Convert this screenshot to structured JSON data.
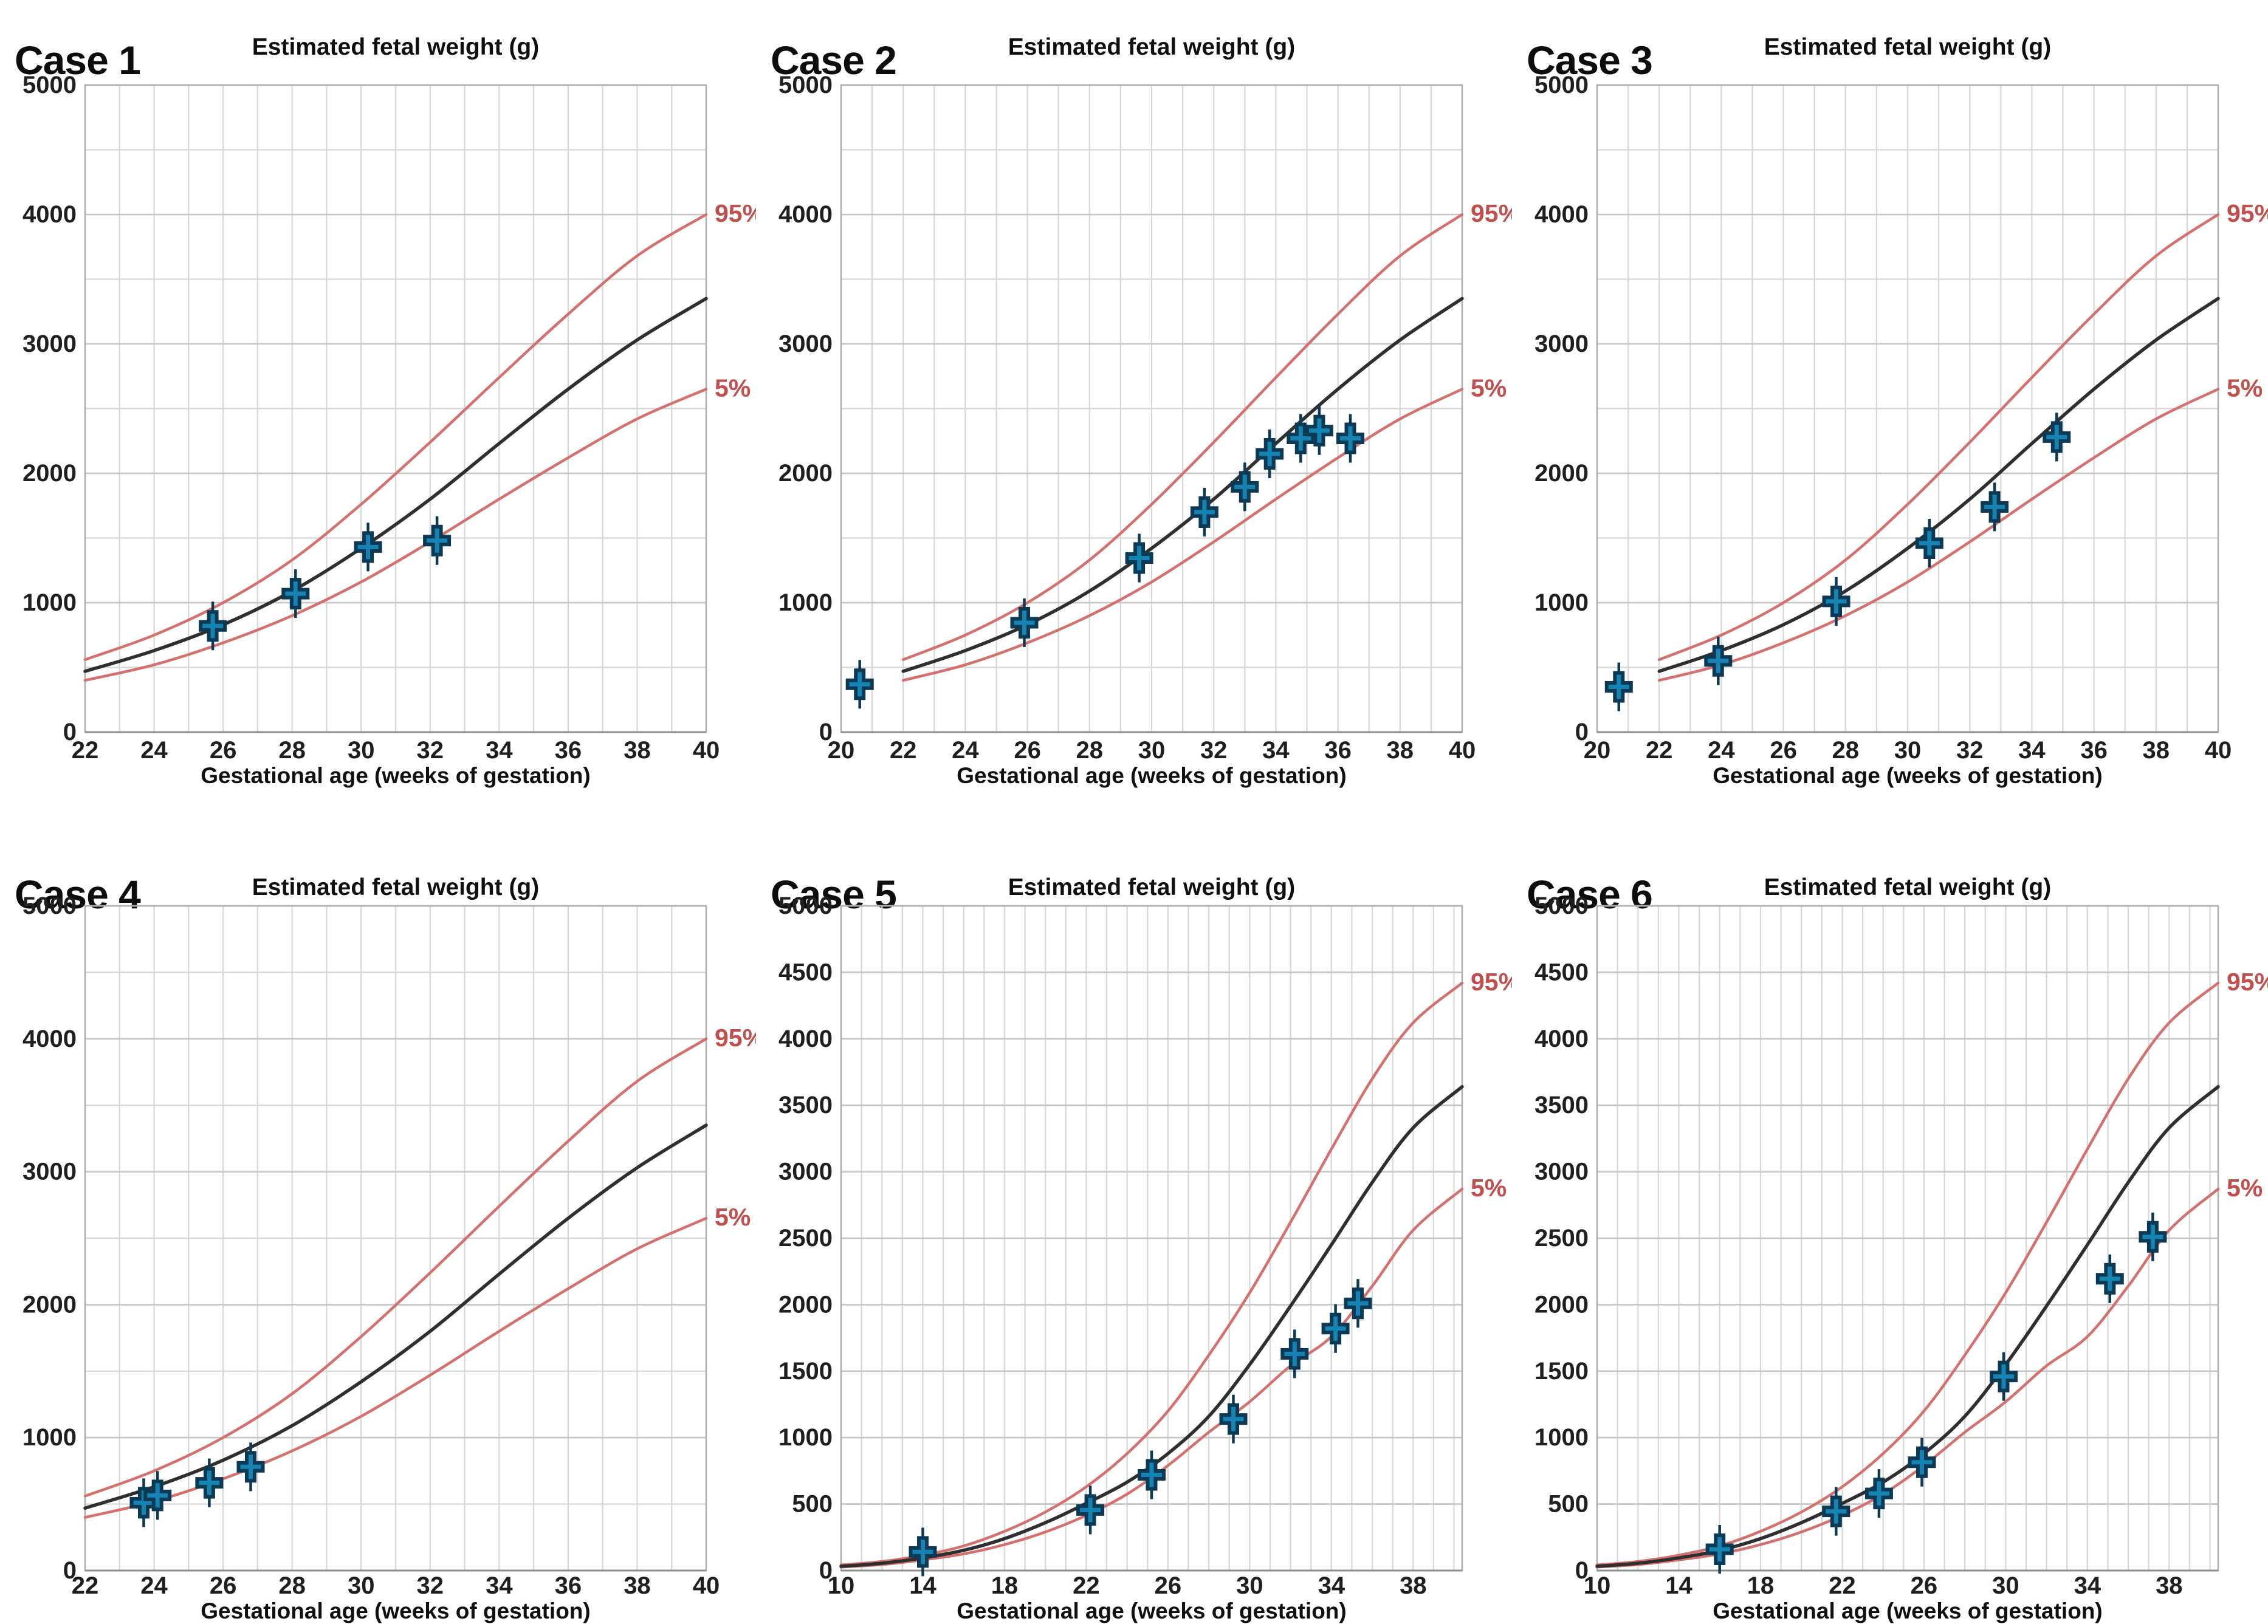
{
  "style": {
    "background": "#ffffff",
    "median_color": "#2f2f2f",
    "percentile_color": "#d4716e",
    "percent_label_color": "#c0504d",
    "marker_fill": "#1584b2",
    "marker_stroke": "#0c3a55",
    "grid_color": "#d7d7d7",
    "grid_major_color": "#c6c6c6",
    "axis_border_color": "#b0b0b0",
    "axis_line_color": "#8f8f8f",
    "tick_color": "#1f1f1f"
  },
  "chart_data": [
    {
      "type": "line+scatter",
      "case_label": "Case 1",
      "title": "Estimated fetal weight (g)",
      "xlabel": "Gestational age (weeks of gestation)",
      "x_axis": {
        "min": 22,
        "max": 40,
        "ticks": [
          22,
          24,
          26,
          28,
          30,
          32,
          34,
          36,
          38,
          40
        ]
      },
      "y_axis": {
        "min": 0,
        "max": 5000,
        "label_step": 1000,
        "grid_step": 500
      },
      "percentile_labels": {
        "p95": "95%",
        "p5": "5%"
      },
      "legend_position": "right-of-curve-ends",
      "series": {
        "x": [
          22,
          24,
          26,
          28,
          30,
          32,
          34,
          36,
          38,
          40
        ],
        "p50": [
          470,
          630,
          830,
          1090,
          1420,
          1800,
          2230,
          2650,
          3030,
          3350
        ],
        "p95": [
          560,
          750,
          1000,
          1330,
          1760,
          2240,
          2740,
          3230,
          3680,
          4000
        ],
        "p5": [
          400,
          520,
          690,
          900,
          1160,
          1470,
          1800,
          2120,
          2420,
          2650
        ]
      },
      "points": [
        [
          25.7,
          820
        ],
        [
          28.1,
          1070
        ],
        [
          30.2,
          1430
        ],
        [
          32.2,
          1480
        ]
      ]
    },
    {
      "type": "line+scatter",
      "case_label": "Case 2",
      "title": "Estimated fetal weight (g)",
      "xlabel": "Gestational age (weeks of gestation)",
      "x_axis": {
        "min": 20,
        "max": 40,
        "ticks": [
          20,
          22,
          24,
          26,
          28,
          30,
          32,
          34,
          36,
          38,
          40
        ]
      },
      "y_axis": {
        "min": 0,
        "max": 5000,
        "label_step": 1000,
        "grid_step": 500
      },
      "percentile_labels": {
        "p95": "95%",
        "p5": "5%"
      },
      "legend_position": "right-of-curve-ends",
      "series": {
        "x": [
          22,
          24,
          26,
          28,
          30,
          32,
          34,
          36,
          38,
          40
        ],
        "p50": [
          470,
          630,
          830,
          1090,
          1420,
          1800,
          2230,
          2650,
          3030,
          3350
        ],
        "p95": [
          560,
          750,
          1000,
          1330,
          1760,
          2240,
          2740,
          3230,
          3680,
          4000
        ],
        "p5": [
          400,
          520,
          690,
          900,
          1160,
          1470,
          1800,
          2120,
          2420,
          2650
        ]
      },
      "points": [
        [
          20.6,
          370
        ],
        [
          25.9,
          845
        ],
        [
          29.6,
          1345
        ],
        [
          31.7,
          1700
        ],
        [
          33.0,
          1895
        ],
        [
          33.8,
          2150
        ],
        [
          34.8,
          2270
        ],
        [
          35.4,
          2330
        ],
        [
          36.4,
          2270
        ]
      ]
    },
    {
      "type": "line+scatter",
      "case_label": "Case 3",
      "title": "Estimated fetal weight (g)",
      "xlabel": "Gestational age (weeks of gestation)",
      "x_axis": {
        "min": 20,
        "max": 40,
        "ticks": [
          20,
          22,
          24,
          26,
          28,
          30,
          32,
          34,
          36,
          38,
          40
        ]
      },
      "y_axis": {
        "min": 0,
        "max": 5000,
        "label_step": 1000,
        "grid_step": 500
      },
      "percentile_labels": {
        "p95": "95%",
        "p5": "5%"
      },
      "legend_position": "right-of-curve-ends",
      "series": {
        "x": [
          22,
          24,
          26,
          28,
          30,
          32,
          34,
          36,
          38,
          40
        ],
        "p50": [
          470,
          630,
          830,
          1090,
          1420,
          1800,
          2230,
          2650,
          3030,
          3350
        ],
        "p95": [
          560,
          750,
          1000,
          1330,
          1760,
          2240,
          2740,
          3230,
          3680,
          4000
        ],
        "p5": [
          400,
          520,
          690,
          900,
          1160,
          1470,
          1800,
          2120,
          2420,
          2650
        ]
      },
      "points": [
        [
          20.7,
          350
        ],
        [
          23.9,
          550
        ],
        [
          27.7,
          1010
        ],
        [
          30.7,
          1460
        ],
        [
          32.8,
          1740
        ],
        [
          34.8,
          2280
        ]
      ]
    },
    {
      "type": "line+scatter",
      "case_label": "Case 4",
      "title": "Estimated fetal weight (g)",
      "xlabel": "Gestational age (weeks of gestation)",
      "x_axis": {
        "min": 22,
        "max": 40,
        "ticks": [
          22,
          24,
          26,
          28,
          30,
          32,
          34,
          36,
          38,
          40
        ]
      },
      "y_axis": {
        "min": 0,
        "max": 5000,
        "label_step": 1000,
        "grid_step": 500
      },
      "percentile_labels": {
        "p95": "95%",
        "p5": "5%"
      },
      "legend_position": "right-of-curve-ends",
      "series": {
        "x": [
          22,
          24,
          26,
          28,
          30,
          32,
          34,
          36,
          38,
          40
        ],
        "p50": [
          470,
          630,
          830,
          1090,
          1420,
          1800,
          2230,
          2650,
          3030,
          3350
        ],
        "p95": [
          560,
          750,
          1000,
          1330,
          1760,
          2240,
          2740,
          3230,
          3680,
          4000
        ],
        "p5": [
          400,
          520,
          690,
          900,
          1160,
          1470,
          1800,
          2120,
          2420,
          2650
        ]
      },
      "points": [
        [
          23.7,
          510
        ],
        [
          24.1,
          565
        ],
        [
          25.6,
          660
        ],
        [
          26.8,
          780
        ]
      ]
    },
    {
      "type": "line+scatter",
      "case_label": "Case 5",
      "title": "Estimated fetal weight (g)",
      "xlabel": "Gestational age (weeks of gestation)",
      "x_axis": {
        "min": 10,
        "max": 40.4,
        "ticks": [
          10,
          14,
          18,
          22,
          26,
          30,
          34,
          38
        ]
      },
      "y_axis": {
        "min": 0,
        "max": 5000,
        "label_step": 500,
        "grid_step": 500
      },
      "percentile_labels": {
        "p95": "95%",
        "p5": "5%"
      },
      "legend_position": "right-of-curve-ends",
      "series": {
        "x": [
          10,
          12,
          14,
          16,
          18,
          20,
          22,
          24,
          26,
          28,
          30,
          32,
          34,
          36,
          38,
          40.4
        ],
        "p50": [
          32,
          55,
          95,
          152,
          240,
          360,
          505,
          665,
          880,
          1160,
          1550,
          1990,
          2450,
          2920,
          3330,
          3640
        ],
        "p95": [
          42,
          68,
          115,
          185,
          295,
          440,
          630,
          880,
          1200,
          1620,
          2090,
          2620,
          3170,
          3700,
          4120,
          4420
        ],
        "p5": [
          26,
          45,
          80,
          125,
          195,
          290,
          415,
          575,
          790,
          1040,
          1270,
          1540,
          1760,
          2140,
          2560,
          2870
        ]
      },
      "points": [
        [
          14,
          140
        ],
        [
          22.2,
          455
        ],
        [
          25.2,
          720
        ],
        [
          29.2,
          1140
        ],
        [
          32.2,
          1630
        ],
        [
          34.2,
          1820
        ],
        [
          35.3,
          2010
        ]
      ]
    },
    {
      "type": "line+scatter",
      "case_label": "Case 6",
      "title": "Estimated fetal weight (g)",
      "xlabel": "Gestational age (weeks of gestation)",
      "x_axis": {
        "min": 10,
        "max": 40.4,
        "ticks": [
          10,
          14,
          18,
          22,
          26,
          30,
          34,
          38
        ]
      },
      "y_axis": {
        "min": 0,
        "max": 5000,
        "label_step": 500,
        "grid_step": 500
      },
      "percentile_labels": {
        "p95": "95%",
        "p5": "5%"
      },
      "legend_position": "right-of-curve-ends",
      "series": {
        "x": [
          10,
          12,
          14,
          16,
          18,
          20,
          22,
          24,
          26,
          28,
          30,
          32,
          34,
          36,
          38,
          40.4
        ],
        "p50": [
          32,
          55,
          95,
          152,
          240,
          360,
          505,
          665,
          880,
          1160,
          1550,
          1990,
          2450,
          2920,
          3330,
          3640
        ],
        "p95": [
          42,
          68,
          115,
          185,
          295,
          440,
          630,
          880,
          1200,
          1620,
          2090,
          2620,
          3170,
          3700,
          4120,
          4420
        ],
        "p5": [
          26,
          45,
          80,
          125,
          195,
          290,
          415,
          575,
          790,
          1040,
          1270,
          1540,
          1760,
          2140,
          2560,
          2870
        ]
      },
      "points": [
        [
          16,
          160
        ],
        [
          21.7,
          445
        ],
        [
          23.8,
          580
        ],
        [
          25.9,
          815
        ],
        [
          29.9,
          1460
        ],
        [
          35.1,
          2195
        ],
        [
          37.2,
          2510
        ]
      ]
    }
  ]
}
